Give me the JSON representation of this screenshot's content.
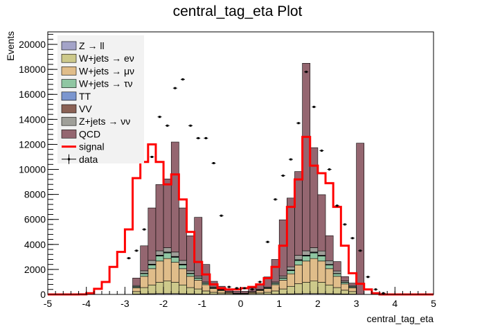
{
  "chart_data": {
    "type": "bar",
    "title": "central_tag_eta Plot",
    "xlabel": "central_tag_eta",
    "ylabel": "Events",
    "xlim": [
      -5,
      5
    ],
    "ylim": [
      0,
      21000
    ],
    "x_ticks": [
      "-5",
      "-4",
      "-3",
      "-2",
      "-1",
      "0",
      "1",
      "2",
      "3",
      "4",
      "5"
    ],
    "y_ticks": [
      "0",
      "2000",
      "4000",
      "6000",
      "8000",
      "10000",
      "12000",
      "14000",
      "16000",
      "18000",
      "20000"
    ],
    "bin_edges": [
      -5.0,
      -4.8,
      -4.6,
      -4.4,
      -4.2,
      -4.0,
      -3.8,
      -3.6,
      -3.4,
      -3.2,
      -3.0,
      -2.8,
      -2.6,
      -2.4,
      -2.2,
      -2.0,
      -1.8,
      -1.6,
      -1.4,
      -1.2,
      -1.0,
      -0.8,
      -0.6,
      -0.4,
      -0.2,
      0.0,
      0.2,
      0.4,
      0.6,
      0.8,
      1.0,
      1.2,
      1.4,
      1.6,
      1.8,
      2.0,
      2.2,
      2.4,
      2.6,
      2.8,
      3.0,
      3.2,
      3.4,
      3.6,
      3.8,
      4.0,
      4.2,
      4.4,
      4.6,
      4.8,
      5.0
    ],
    "stack_series": [
      {
        "name": "Z → ll",
        "color": "#a3a3c8",
        "values": [
          0,
          0,
          0,
          0,
          0,
          0,
          0,
          0,
          0,
          0,
          0,
          30,
          50,
          60,
          70,
          70,
          70,
          60,
          50,
          40,
          30,
          20,
          15,
          10,
          5,
          5,
          10,
          15,
          20,
          30,
          40,
          50,
          60,
          70,
          70,
          70,
          60,
          50,
          40,
          30,
          0,
          0,
          0,
          0,
          0,
          0,
          0,
          0,
          0,
          0
        ]
      },
      {
        "name": "W+jets → eν",
        "color": "#cdc98b",
        "values": [
          0,
          0,
          0,
          0,
          0,
          0,
          0,
          0,
          0,
          0,
          0,
          200,
          500,
          700,
          900,
          1000,
          900,
          700,
          500,
          400,
          250,
          150,
          100,
          60,
          30,
          30,
          60,
          100,
          150,
          250,
          400,
          600,
          800,
          900,
          1000,
          900,
          700,
          500,
          300,
          200,
          0,
          0,
          0,
          0,
          0,
          0,
          0,
          0,
          0,
          0
        ]
      },
      {
        "name": "W+jets → μν",
        "color": "#e0bd8a",
        "values": [
          0,
          0,
          0,
          0,
          0,
          0,
          0,
          0,
          0,
          0,
          0,
          300,
          900,
          1300,
          1700,
          1800,
          1600,
          1300,
          900,
          700,
          500,
          300,
          200,
          100,
          50,
          50,
          100,
          200,
          300,
          500,
          700,
          1000,
          1500,
          1700,
          1800,
          1700,
          1300,
          900,
          500,
          300,
          0,
          0,
          0,
          0,
          0,
          0,
          0,
          0,
          0,
          0
        ]
      },
      {
        "name": "W+jets → τν",
        "color": "#8fc6a2",
        "values": [
          0,
          0,
          0,
          0,
          0,
          0,
          0,
          0,
          0,
          0,
          0,
          80,
          200,
          300,
          400,
          450,
          400,
          300,
          200,
          150,
          100,
          60,
          40,
          20,
          10,
          10,
          20,
          40,
          60,
          100,
          150,
          250,
          350,
          400,
          450,
          400,
          300,
          200,
          120,
          80,
          0,
          0,
          0,
          0,
          0,
          0,
          0,
          0,
          0,
          0
        ]
      },
      {
        "name": "TT",
        "color": "#7b96cf",
        "values": [
          0,
          0,
          0,
          0,
          0,
          0,
          0,
          0,
          0,
          0,
          0,
          10,
          20,
          30,
          40,
          40,
          40,
          30,
          20,
          15,
          10,
          5,
          5,
          5,
          0,
          0,
          5,
          5,
          5,
          10,
          15,
          30,
          40,
          40,
          40,
          30,
          20,
          15,
          10,
          10,
          0,
          0,
          0,
          0,
          0,
          0,
          0,
          0,
          0,
          0
        ]
      },
      {
        "name": "VV",
        "color": "#8a6155",
        "values": [
          0,
          0,
          0,
          0,
          0,
          0,
          0,
          0,
          0,
          0,
          0,
          10,
          20,
          30,
          30,
          30,
          30,
          30,
          20,
          15,
          10,
          5,
          5,
          0,
          0,
          0,
          0,
          5,
          5,
          10,
          15,
          30,
          30,
          30,
          30,
          30,
          20,
          15,
          10,
          10,
          0,
          0,
          0,
          0,
          0,
          0,
          0,
          0,
          0,
          0
        ]
      },
      {
        "name": "Z+jets → νν",
        "color": "#9f9f99",
        "values": [
          0,
          0,
          0,
          0,
          0,
          0,
          0,
          0,
          0,
          0,
          0,
          80,
          200,
          300,
          350,
          350,
          350,
          300,
          200,
          150,
          100,
          60,
          40,
          20,
          10,
          10,
          20,
          40,
          60,
          100,
          150,
          250,
          350,
          350,
          350,
          350,
          300,
          200,
          100,
          80,
          0,
          0,
          0,
          0,
          0,
          0,
          0,
          0,
          0,
          0
        ]
      },
      {
        "name": "QCD",
        "color": "#946670",
        "values": [
          0,
          0,
          0,
          0,
          0,
          0,
          0,
          0,
          0,
          0,
          0,
          600,
          2000,
          4200,
          5300,
          5500,
          8800,
          4200,
          2800,
          4700,
          1400,
          450,
          250,
          200,
          150,
          150,
          300,
          450,
          800,
          1800,
          4500,
          5500,
          6700,
          15000,
          8000,
          4500,
          2000,
          750,
          350,
          200,
          12100,
          0,
          0,
          0,
          0,
          0,
          0,
          0,
          0,
          0
        ]
      }
    ],
    "signal": {
      "name": "signal",
      "color": "#ff0000",
      "values": [
        0,
        0,
        0,
        0,
        10,
        100,
        450,
        1000,
        2200,
        3400,
        5200,
        9300,
        10600,
        12000,
        10600,
        8800,
        9600,
        7600,
        5000,
        2600,
        1600,
        800,
        500,
        400,
        400,
        500,
        600,
        800,
        1300,
        2200,
        3900,
        7000,
        9200,
        12600,
        10300,
        9700,
        8900,
        7000,
        3900,
        1700,
        850,
        400,
        100,
        0,
        0,
        0,
        0,
        0,
        0,
        0
      ]
    },
    "data": {
      "name": "data",
      "values": [
        0,
        0,
        0,
        0,
        0,
        0,
        0,
        0,
        0,
        0,
        2900,
        3500,
        5200,
        11000,
        14200,
        13500,
        16500,
        17200,
        13500,
        12500,
        12500,
        10500,
        6300,
        600,
        500,
        500,
        400,
        1000,
        4200,
        7600,
        9500,
        10800,
        13700,
        17800,
        15000,
        11500,
        10000,
        7100,
        5600,
        4500,
        3500,
        1400,
        400,
        100,
        0,
        0,
        0,
        0,
        0,
        0
      ]
    },
    "legend": {
      "placement": "top-left",
      "entries": [
        "Z → ll",
        "W+jets → eν",
        "W+jets → μν",
        "W+jets → τν",
        "TT",
        "VV",
        "Z+jets → νν",
        "QCD",
        "signal",
        "data"
      ]
    },
    "grid": false
  }
}
